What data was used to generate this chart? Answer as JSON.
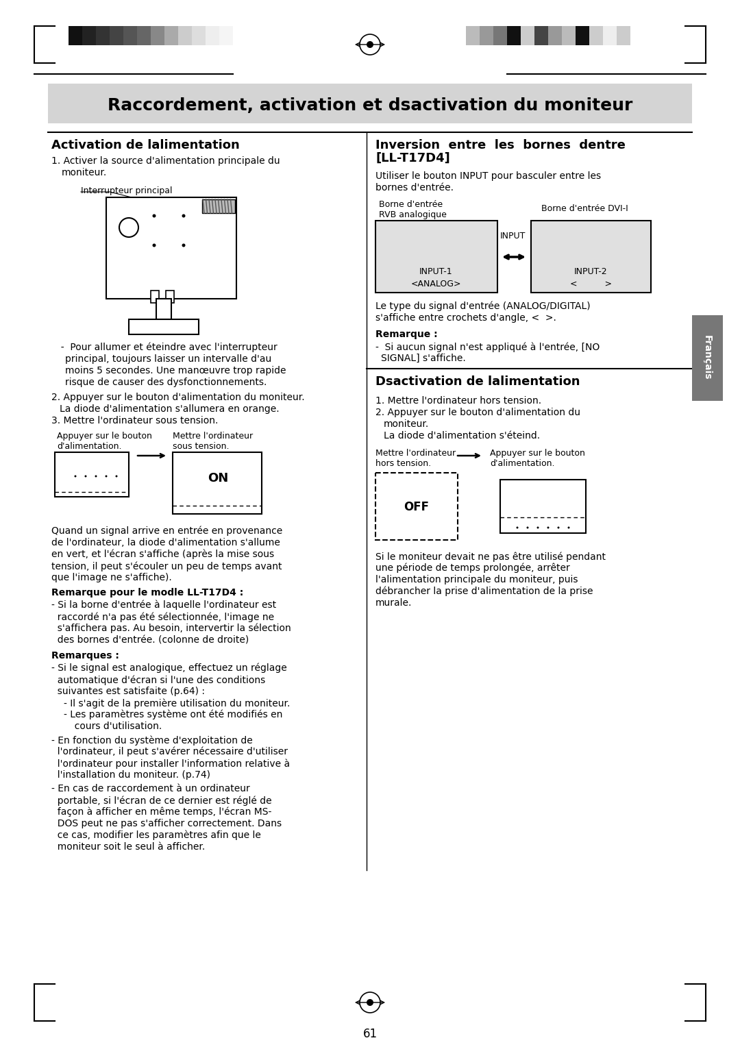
{
  "title_box_text": "Raccordement, activation et dsactivation du moniteur",
  "bg_color": "#ffffff",
  "title_box_color": "#d4d4d4",
  "left_section_title": "Activation de lalimentation",
  "right_section_title": "Inversion entre les bornes dentre\n[LL-T17D4]",
  "bottom_section_title": "Dsactivation de lalimentation",
  "page_number": "61",
  "francais_label": "Français",
  "francais_bg": "#777777",
  "colors_left": [
    "#111111",
    "#222222",
    "#333333",
    "#444444",
    "#555555",
    "#666666",
    "#888888",
    "#aaaaaa",
    "#cccccc",
    "#dddddd",
    "#eeeeee",
    "#f5f5f5"
  ],
  "colors_right": [
    "#bbbbbb",
    "#999999",
    "#777777",
    "#111111",
    "#cccccc",
    "#444444",
    "#999999",
    "#bbbbbb",
    "#111111",
    "#cccccc",
    "#eeeeee",
    "#cccccc"
  ]
}
